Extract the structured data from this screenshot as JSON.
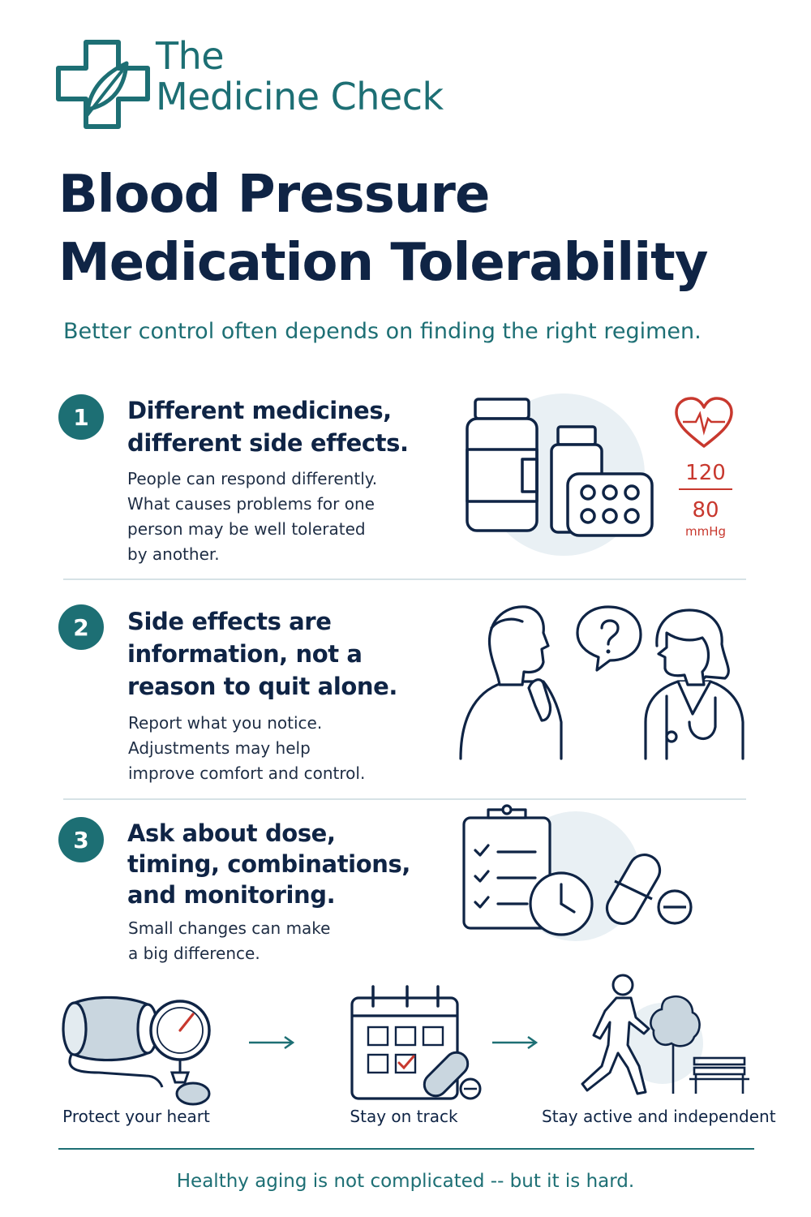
{
  "brand": {
    "line1": "The",
    "line2": "Medicine Check",
    "logo_icon": "cross-leaf-icon"
  },
  "title": {
    "line1": "Blood Pressure",
    "line2": "Medication Tolerability"
  },
  "subtitle": "Better control often depends on finding the right regimen.",
  "sections": [
    {
      "number": "1",
      "heading": [
        "Different medicines,",
        "different side effects."
      ],
      "body": [
        "People can respond differently.",
        "What causes problems for one",
        "person may be well tolerated",
        "by another."
      ],
      "icons": [
        "pill-bottle-icon",
        "blister-pack-icon",
        "heart-rate-icon"
      ],
      "reading": {
        "systolic": "120",
        "diastolic": "80",
        "unit": "mmHg"
      }
    },
    {
      "number": "2",
      "heading": [
        "Side effects are",
        "information, not a",
        "reason to quit alone."
      ],
      "body": [
        "Report what you notice.",
        "Adjustments may help",
        "improve comfort and control."
      ],
      "icons": [
        "thinking-patient-icon",
        "question-bubble-icon",
        "doctor-icon"
      ]
    },
    {
      "number": "3",
      "heading": [
        "Ask about dose,",
        "timing, combinations,",
        "and monitoring."
      ],
      "body": [
        "Small changes can make",
        "a big difference."
      ],
      "icons": [
        "checklist-clipboard-icon",
        "clock-icon",
        "capsule-icon",
        "tablet-icon"
      ]
    }
  ],
  "steps": [
    {
      "label": "Protect your heart",
      "icon": "blood-pressure-cuff-icon"
    },
    {
      "label": "Stay on track",
      "icon": "calendar-icon"
    },
    {
      "label": "Stay active and independent",
      "icon": "walking-person-icon"
    }
  ],
  "tagline": "Healthy aging is not complicated -- but it is hard.",
  "colors": {
    "navy": "#0f2445",
    "teal": "#1d6f74",
    "red": "#c8382e",
    "tint": "#e9f0f4"
  }
}
